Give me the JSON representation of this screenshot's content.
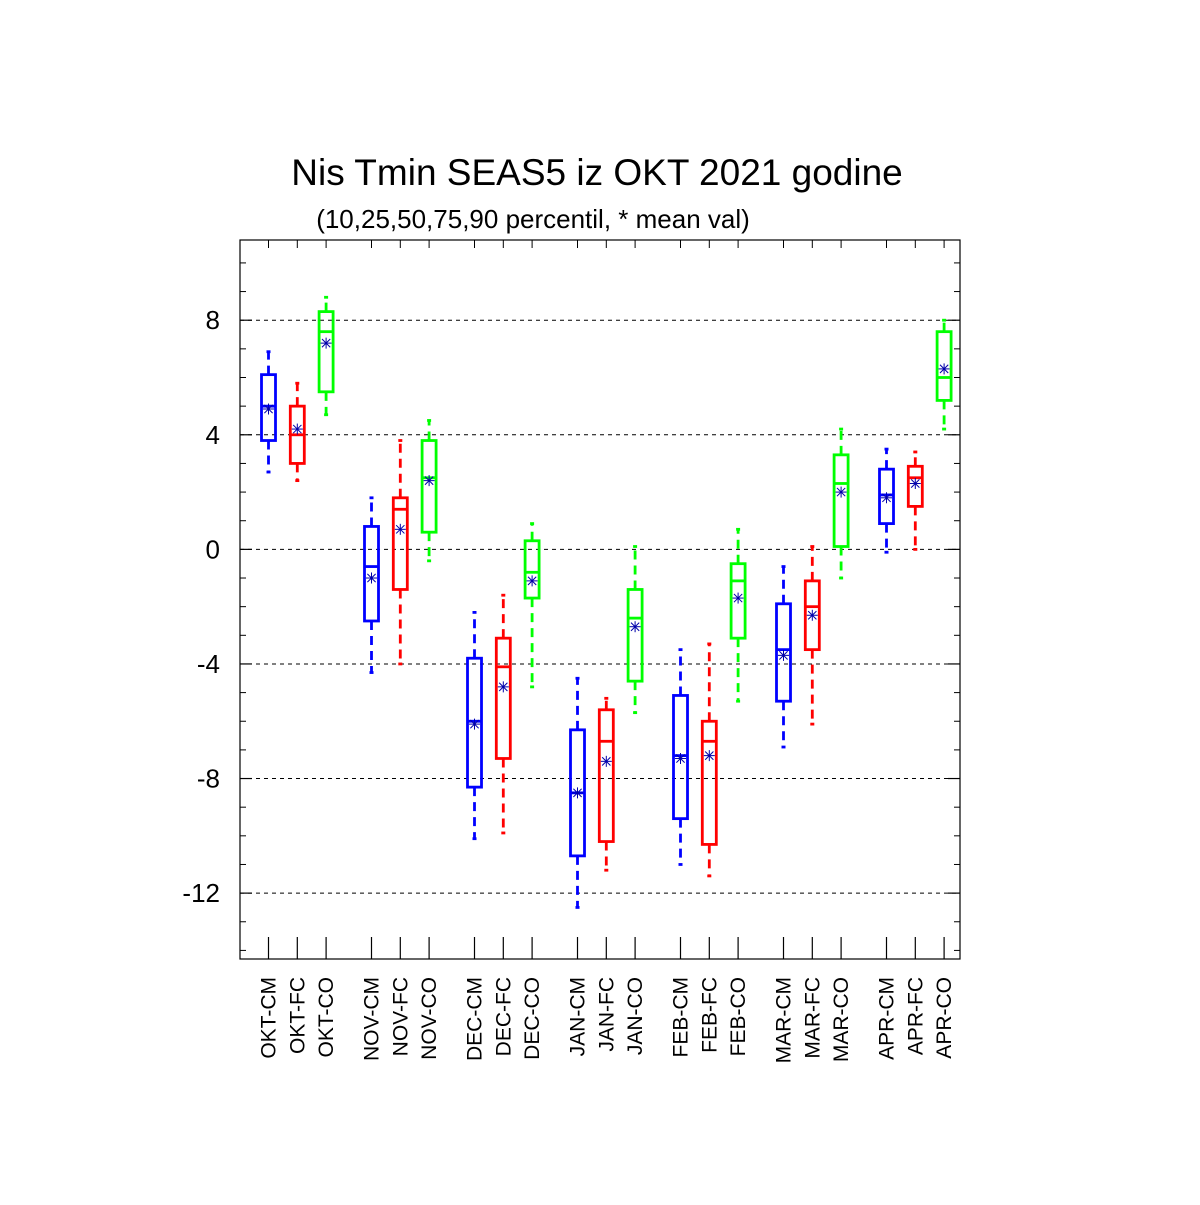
{
  "chart_data": {
    "type": "box",
    "title": "Nis Tmin SEAS5 iz OKT 2021 godine",
    "subtitle": "(10,25,50,75,90 percentil, * mean val)",
    "ylim": [
      -14.3,
      10.8
    ],
    "yticks": [
      8,
      4,
      0,
      -4,
      -8,
      -12
    ],
    "ytick_labels": [
      "8",
      "4",
      "0",
      "-4",
      "-8",
      "-12"
    ],
    "ygrid": "dashed at labeled ticks",
    "colors": {
      "CM": "#0000ff",
      "FC": "#ff0000",
      "CO": "#00ff00",
      "mean_marker": "#0000aa"
    },
    "categories": [
      "OKT-CM",
      "OKT-FC",
      "OKT-CO",
      "NOV-CM",
      "NOV-FC",
      "NOV-CO",
      "DEC-CM",
      "DEC-FC",
      "DEC-CO",
      "JAN-CM",
      "JAN-FC",
      "JAN-CO",
      "FEB-CM",
      "FEB-FC",
      "FEB-CO",
      "MAR-CM",
      "MAR-FC",
      "MAR-CO",
      "APR-CM",
      "APR-FC",
      "APR-CO"
    ],
    "boxes": [
      {
        "label": "OKT-CM",
        "kind": "CM",
        "p10": 2.7,
        "p25": 3.8,
        "p50": 5.0,
        "p75": 6.1,
        "p90": 6.9,
        "mean": 4.9
      },
      {
        "label": "OKT-FC",
        "kind": "FC",
        "p10": 2.4,
        "p25": 3.0,
        "p50": 4.0,
        "p75": 5.0,
        "p90": 5.8,
        "mean": 4.2
      },
      {
        "label": "OKT-CO",
        "kind": "CO",
        "p10": 4.7,
        "p25": 5.5,
        "p50": 7.6,
        "p75": 8.3,
        "p90": 8.8,
        "mean": 7.2
      },
      {
        "label": "NOV-CM",
        "kind": "CM",
        "p10": -4.3,
        "p25": -2.5,
        "p50": -0.6,
        "p75": 0.8,
        "p90": 1.8,
        "mean": -1.0
      },
      {
        "label": "NOV-FC",
        "kind": "FC",
        "p10": -4.0,
        "p25": -1.4,
        "p50": 1.4,
        "p75": 1.8,
        "p90": 3.8,
        "mean": 0.7
      },
      {
        "label": "NOV-CO",
        "kind": "CO",
        "p10": -0.4,
        "p25": 0.6,
        "p50": 2.5,
        "p75": 3.8,
        "p90": 4.5,
        "mean": 2.4
      },
      {
        "label": "DEC-CM",
        "kind": "CM",
        "p10": -10.1,
        "p25": -8.3,
        "p50": -6.0,
        "p75": -3.8,
        "p90": -2.2,
        "mean": -6.1
      },
      {
        "label": "DEC-FC",
        "kind": "FC",
        "p10": -9.9,
        "p25": -7.3,
        "p50": -4.1,
        "p75": -3.1,
        "p90": -1.6,
        "mean": -4.8
      },
      {
        "label": "DEC-CO",
        "kind": "CO",
        "p10": -4.8,
        "p25": -1.7,
        "p50": -0.8,
        "p75": 0.3,
        "p90": 0.9,
        "mean": -1.1
      },
      {
        "label": "JAN-CM",
        "kind": "CM",
        "p10": -12.5,
        "p25": -10.7,
        "p50": -8.5,
        "p75": -6.3,
        "p90": -4.5,
        "mean": -8.5
      },
      {
        "label": "JAN-FC",
        "kind": "FC",
        "p10": -11.2,
        "p25": -10.2,
        "p50": -6.7,
        "p75": -5.6,
        "p90": -5.2,
        "mean": -7.4
      },
      {
        "label": "JAN-CO",
        "kind": "CO",
        "p10": -5.7,
        "p25": -4.6,
        "p50": -2.4,
        "p75": -1.4,
        "p90": 0.1,
        "mean": -2.7
      },
      {
        "label": "FEB-CM",
        "kind": "CM",
        "p10": -11.0,
        "p25": -9.4,
        "p50": -7.2,
        "p75": -5.1,
        "p90": -3.5,
        "mean": -7.3
      },
      {
        "label": "FEB-FC",
        "kind": "FC",
        "p10": -11.4,
        "p25": -10.3,
        "p50": -6.7,
        "p75": -6.0,
        "p90": -3.3,
        "mean": -7.2
      },
      {
        "label": "FEB-CO",
        "kind": "CO",
        "p10": -5.3,
        "p25": -3.1,
        "p50": -1.1,
        "p75": -0.5,
        "p90": 0.7,
        "mean": -1.7
      },
      {
        "label": "MAR-CM",
        "kind": "CM",
        "p10": -6.9,
        "p25": -5.3,
        "p50": -3.5,
        "p75": -1.9,
        "p90": -0.6,
        "mean": -3.7
      },
      {
        "label": "MAR-FC",
        "kind": "FC",
        "p10": -6.1,
        "p25": -3.5,
        "p50": -2.0,
        "p75": -1.1,
        "p90": 0.1,
        "mean": -2.3
      },
      {
        "label": "MAR-CO",
        "kind": "CO",
        "p10": -1.0,
        "p25": 0.1,
        "p50": 2.3,
        "p75": 3.3,
        "p90": 4.2,
        "mean": 2.0
      },
      {
        "label": "APR-CM",
        "kind": "CM",
        "p10": -0.1,
        "p25": 0.9,
        "p50": 1.9,
        "p75": 2.8,
        "p90": 3.5,
        "mean": 1.8
      },
      {
        "label": "APR-FC",
        "kind": "FC",
        "p10": 0.0,
        "p25": 1.5,
        "p50": 2.5,
        "p75": 2.9,
        "p90": 3.4,
        "mean": 2.3
      },
      {
        "label": "APR-CO",
        "kind": "CO",
        "p10": 4.2,
        "p25": 5.2,
        "p50": 6.0,
        "p75": 7.6,
        "p90": 8.0,
        "mean": 6.3
      }
    ]
  }
}
